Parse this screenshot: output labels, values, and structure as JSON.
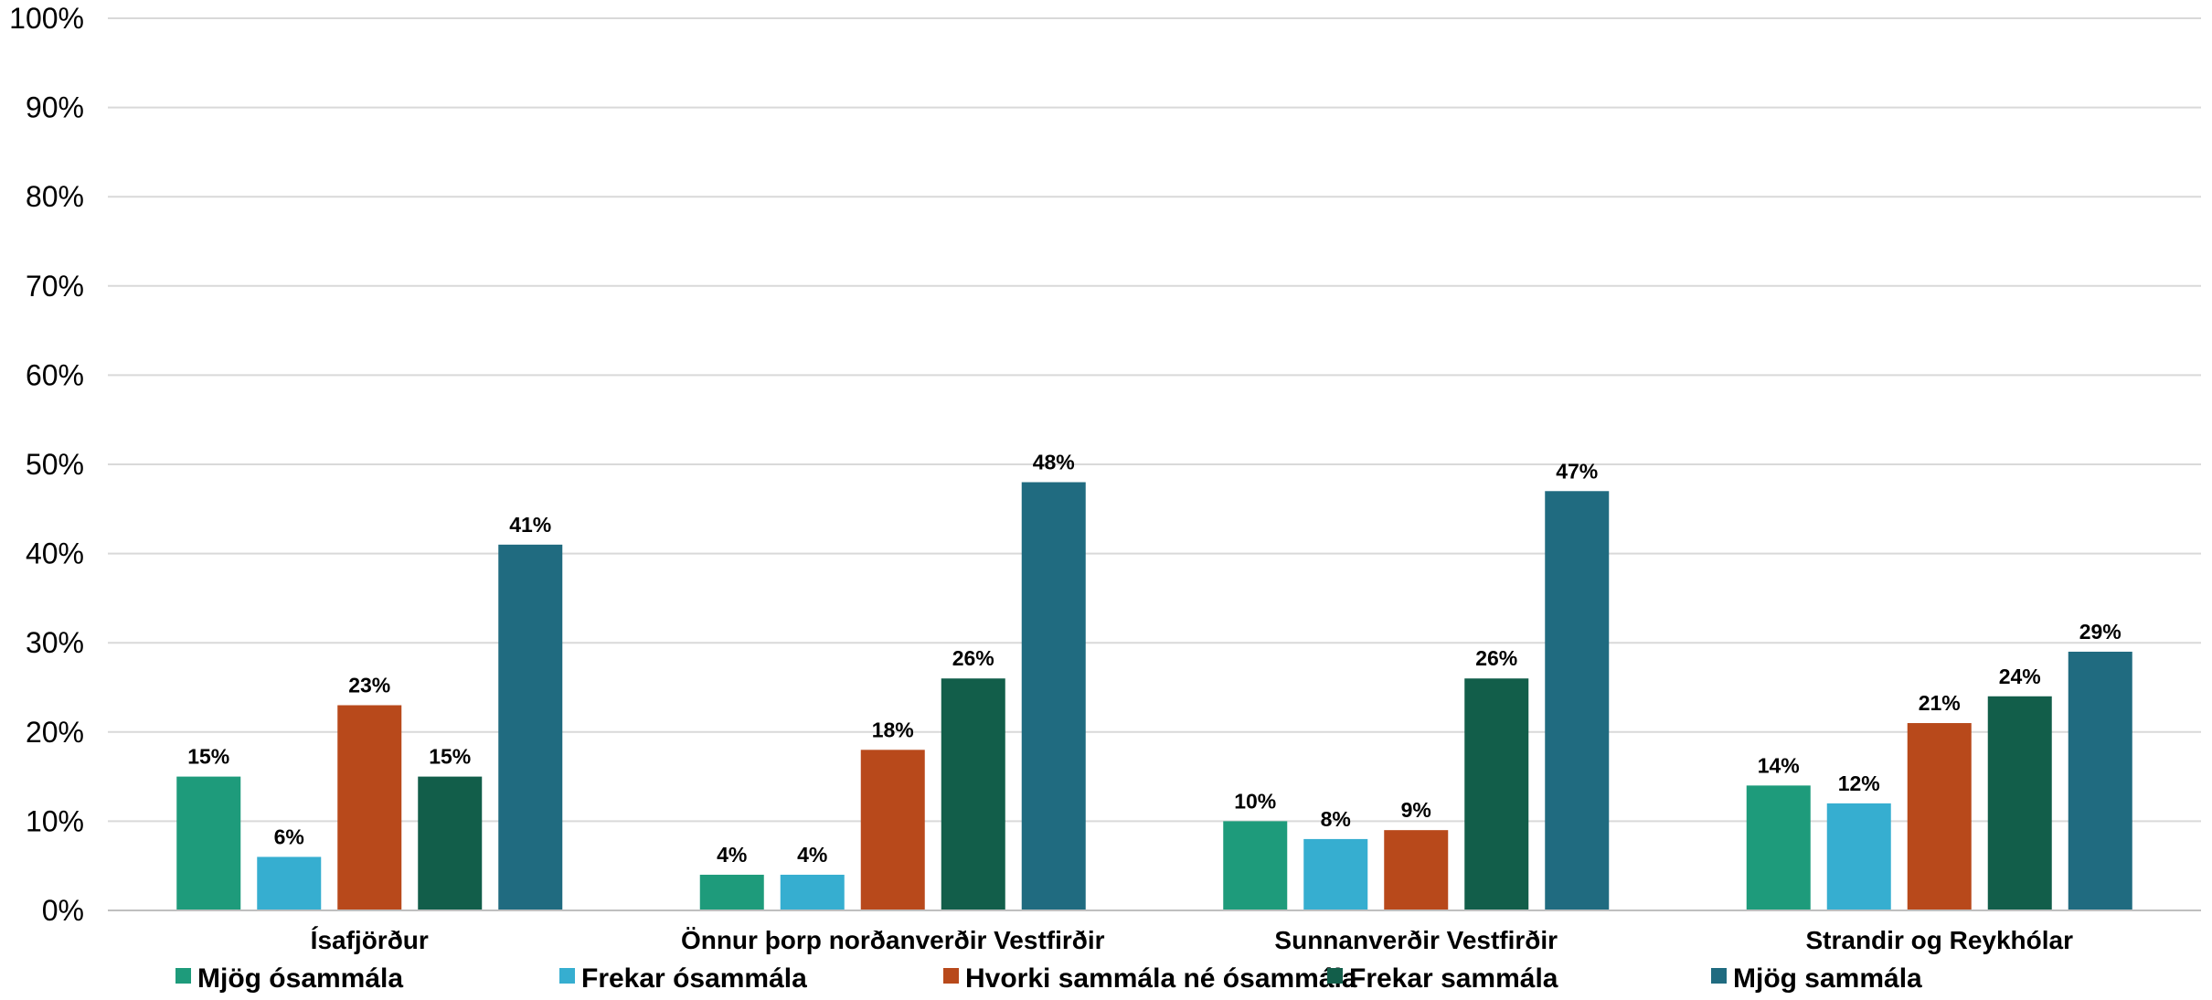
{
  "chart_data": {
    "type": "bar",
    "categories": [
      "Ísafjörður",
      "Önnur þorp norðanverðir Vestfirðir",
      "Sunnanverðir Vestfirðir",
      "Strandir og Reykhólar"
    ],
    "series": [
      {
        "name": "Mjög ósammála",
        "color": "#1e9b7b",
        "values": [
          15,
          4,
          10,
          14
        ]
      },
      {
        "name": "Frekar ósammála",
        "color": "#36aed0",
        "values": [
          6,
          4,
          8,
          12
        ]
      },
      {
        "name": "Hvorki sammála né ósammála",
        "color": "#b8491b",
        "values": [
          23,
          18,
          9,
          21
        ]
      },
      {
        "name": "Frekar sammála",
        "color": "#125e4a",
        "values": [
          15,
          26,
          26,
          24
        ]
      },
      {
        "name": "Mjög sammála",
        "color": "#206b80",
        "values": [
          41,
          48,
          47,
          29
        ]
      }
    ],
    "y_ticks": [
      "0%",
      "10%",
      "20%",
      "30%",
      "40%",
      "50%",
      "60%",
      "70%",
      "80%",
      "90%",
      "100%"
    ],
    "value_suffix": "%",
    "ylim": [
      0,
      100
    ],
    "grid": true,
    "legend_position": "bottom",
    "title": "",
    "xlabel": "",
    "ylabel": ""
  }
}
